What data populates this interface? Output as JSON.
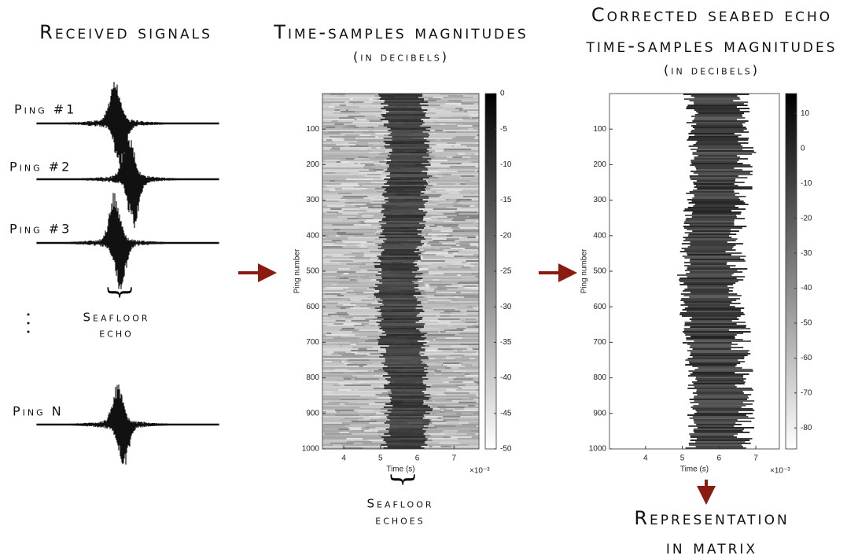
{
  "left_panel": {
    "title": "Received signals",
    "pings": [
      "Ping #1",
      "Ping #2",
      "Ping #3",
      "Ping N"
    ],
    "caption": [
      "Seafloor",
      "echo"
    ]
  },
  "chart_data": [
    {
      "type": "heatmap",
      "title_lines": [
        "Time-samples magnitudes"
      ],
      "subtitle": "(in decibels)",
      "xlabel": "Time (s)",
      "ylabel": "Ping number",
      "x_exponent_label": "×10⁻³",
      "xlim": [
        3.42,
        7.68
      ],
      "xticks": [
        4,
        5,
        6,
        7
      ],
      "ylim": [
        0,
        1000
      ],
      "yticks": [
        100,
        200,
        300,
        400,
        500,
        600,
        700,
        800,
        900,
        1000
      ],
      "y_reversed": true,
      "clim": [
        -50,
        0
      ],
      "cticks": [
        0,
        -5,
        -10,
        -15,
        -20,
        -25,
        -30,
        -35,
        -40,
        -45,
        -50
      ],
      "colormap": [
        "#ffffff",
        "#000000"
      ],
      "caption": [
        "Seafloor",
        "echoes"
      ]
    },
    {
      "type": "heatmap",
      "title_lines": [
        "Corrected seabed echo",
        "time-samples magnitudes"
      ],
      "subtitle": "(in decibels)",
      "xlabel": "Time (s)",
      "ylabel": "Ping number",
      "x_exponent_label": "×10⁻³",
      "xlim": [
        3.02,
        7.64
      ],
      "xticks": [
        4,
        5,
        6,
        7
      ],
      "ylim": [
        0,
        1000
      ],
      "yticks": [
        100,
        200,
        300,
        400,
        500,
        600,
        700,
        800,
        900,
        1000
      ],
      "y_reversed": true,
      "clim": [
        -86,
        15.7
      ],
      "cticks": [
        10,
        0,
        -10,
        -20,
        -30,
        -40,
        -50,
        -60,
        -70,
        -80
      ],
      "colormap": [
        "#ffffff",
        "#000000"
      ],
      "caption": [
        "Representation",
        "in matrix"
      ]
    }
  ]
}
